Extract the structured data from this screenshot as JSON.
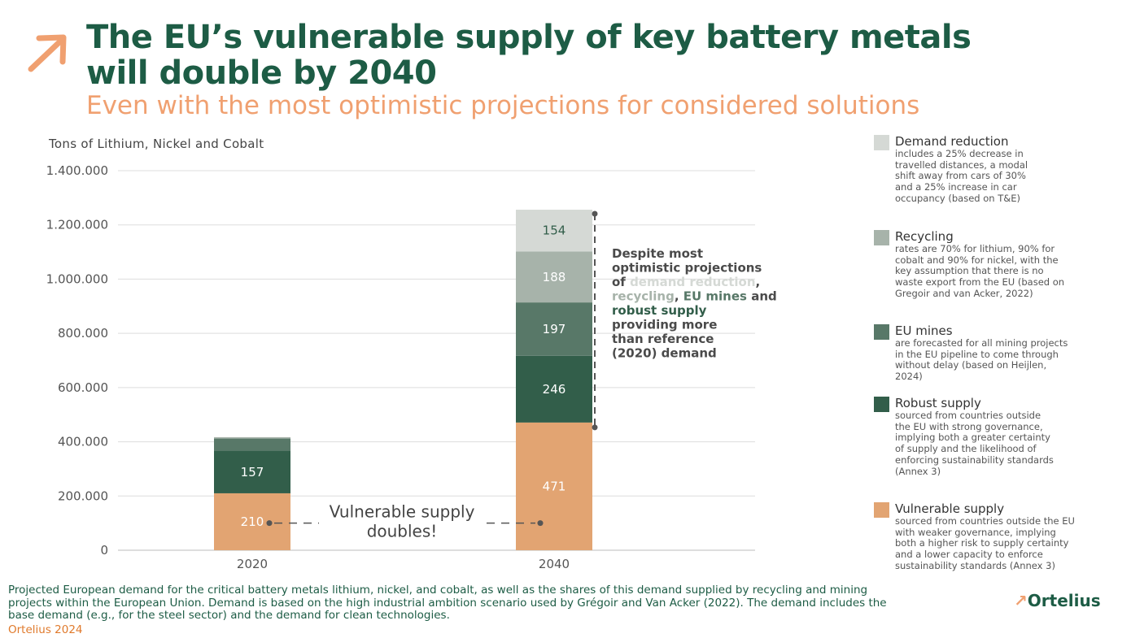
{
  "header": {
    "title": "The EU’s vulnerable supply of key battery metals will double by 2040",
    "subtitle": "Even with the most optimistic projections for considered solutions"
  },
  "colors": {
    "title": "#1d5c45",
    "accent": "#f0a070",
    "demand_reduction": "#d5d9d5",
    "recycling": "#a7b3aa",
    "eu_mines": "#587868",
    "robust_supply": "#325e4a",
    "vulnerable_supply": "#e2a472"
  },
  "chart_data": {
    "type": "bar",
    "stacked": true,
    "ylabel": "Tons of Lithium, Nickel and Cobalt",
    "ylim": [
      0,
      1400000
    ],
    "yticks": [
      0,
      200000,
      400000,
      600000,
      800000,
      1000000,
      1200000,
      1400000
    ],
    "ytick_labels": [
      "0",
      "200.000",
      "400.000",
      "600.000",
      "800.000",
      "1.000.000",
      "1.200.000",
      "1.400.000"
    ],
    "categories": [
      "2020",
      "2040"
    ],
    "series": [
      {
        "name": "Vulnerable supply",
        "values": [
          210000,
          471000
        ],
        "labels": [
          "210",
          "471"
        ]
      },
      {
        "name": "Robust supply",
        "values": [
          157000,
          246000
        ],
        "labels": [
          "157",
          "246"
        ]
      },
      {
        "name": "EU mines",
        "values": [
          45000,
          197000
        ],
        "labels": [
          "",
          "197"
        ]
      },
      {
        "name": "Recycling",
        "values": [
          5000,
          188000
        ],
        "labels": [
          "",
          "188"
        ]
      },
      {
        "name": "Demand reduction",
        "values": [
          0,
          154000
        ],
        "labels": [
          "",
          "154"
        ]
      }
    ],
    "annotations": {
      "bracket": [
        "Despite most",
        "optimistic projections",
        "of ",
        "demand reduction",
        ",",
        "recycling",
        ", ",
        "EU mines",
        " and",
        "robust supply",
        "providing more",
        "than reference",
        "(2020) demand"
      ],
      "vulnerable": [
        "Vulnerable supply",
        "doubles!"
      ]
    },
    "grid": true
  },
  "legend": [
    {
      "title": "Demand reduction",
      "color": "#d5d9d5",
      "desc": "includes a 25% decrease in travelled distances, a modal shift away from cars of 30% and a 25% increase in car occupancy (based on T&E)"
    },
    {
      "title": "Recycling",
      "color": "#a7b3aa",
      "desc": "rates are 70% for lithium, 90% for cobalt and 90% for nickel, with the key assumption that there is no waste export from the EU (based on Gregoir and van Acker, 2022)"
    },
    {
      "title": "EU mines",
      "color": "#587868",
      "desc": "are forecasted for all mining projects in the EU pipeline to come through without delay (based on Heijlen, 2024)"
    },
    {
      "title": "Robust supply",
      "color": "#325e4a",
      "desc": "sourced from countries outside the EU with strong governance, implying both a greater certainty of supply and the likelihood of enforcing sustainability standards (Annex 3)"
    },
    {
      "title": "Vulnerable supply",
      "color": "#e2a472",
      "desc": "sourced from countries outside the EU with weaker governance, implying both a higher risk to supply certainty and a lower capacity to enforce sustainability standards (Annex 3)"
    }
  ],
  "footer": {
    "caption": "Projected European demand for the critical battery metals lithium, nickel, and cobalt, as well as the shares of this demand supplied by recycling and mining projects within the European Union. Demand is based on the high industrial ambition scenario used by Grégoir and Van Acker (2022). The demand includes the base demand (e.g., for the steel sector) and the demand for clean technologies.",
    "source": "Ortelius 2024",
    "brand": "Ortelius"
  }
}
